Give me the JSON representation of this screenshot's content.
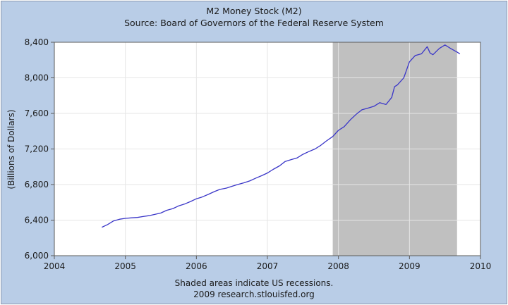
{
  "chart_data": {
    "type": "line",
    "title": "M2 Money Stock (M2)",
    "subtitle": "Source: Board of Governors of the Federal Reserve System",
    "xlabel": "",
    "ylabel": "(Billions of Dollars)",
    "xlim": [
      2004,
      2010
    ],
    "ylim": [
      6000,
      8400
    ],
    "x_ticks": [
      "2004",
      "2005",
      "2006",
      "2007",
      "2008",
      "2009",
      "2010"
    ],
    "y_ticks": [
      "6,000",
      "6,400",
      "6,800",
      "7,200",
      "7,600",
      "8,000",
      "8,400"
    ],
    "grid": true,
    "legend": "none",
    "recessions": [
      {
        "start": 2007.92,
        "end": 2009.67
      }
    ],
    "series": [
      {
        "color": "#3a36c8",
        "points": [
          [
            2004.67,
            6320
          ],
          [
            2004.75,
            6350
          ],
          [
            2004.83,
            6390
          ],
          [
            2004.92,
            6410
          ],
          [
            2005.0,
            6420
          ],
          [
            2005.08,
            6425
          ],
          [
            2005.17,
            6430
          ],
          [
            2005.25,
            6440
          ],
          [
            2005.33,
            6450
          ],
          [
            2005.42,
            6465
          ],
          [
            2005.5,
            6480
          ],
          [
            2005.58,
            6510
          ],
          [
            2005.67,
            6530
          ],
          [
            2005.75,
            6560
          ],
          [
            2005.83,
            6580
          ],
          [
            2005.92,
            6610
          ],
          [
            2006.0,
            6640
          ],
          [
            2006.08,
            6660
          ],
          [
            2006.17,
            6690
          ],
          [
            2006.25,
            6720
          ],
          [
            2006.33,
            6745
          ],
          [
            2006.42,
            6760
          ],
          [
            2006.5,
            6780
          ],
          [
            2006.58,
            6800
          ],
          [
            2006.67,
            6820
          ],
          [
            2006.75,
            6840
          ],
          [
            2006.83,
            6870
          ],
          [
            2006.92,
            6900
          ],
          [
            2007.0,
            6930
          ],
          [
            2007.08,
            6970
          ],
          [
            2007.17,
            7010
          ],
          [
            2007.25,
            7060
          ],
          [
            2007.33,
            7080
          ],
          [
            2007.42,
            7100
          ],
          [
            2007.5,
            7140
          ],
          [
            2007.58,
            7170
          ],
          [
            2007.67,
            7200
          ],
          [
            2007.75,
            7240
          ],
          [
            2007.83,
            7290
          ],
          [
            2007.92,
            7340
          ],
          [
            2008.0,
            7410
          ],
          [
            2008.08,
            7450
          ],
          [
            2008.17,
            7530
          ],
          [
            2008.25,
            7590
          ],
          [
            2008.33,
            7640
          ],
          [
            2008.42,
            7660
          ],
          [
            2008.5,
            7680
          ],
          [
            2008.58,
            7720
          ],
          [
            2008.67,
            7700
          ],
          [
            2008.75,
            7780
          ],
          [
            2008.79,
            7900
          ],
          [
            2008.83,
            7920
          ],
          [
            2008.92,
            8000
          ],
          [
            2009.0,
            8180
          ],
          [
            2009.08,
            8250
          ],
          [
            2009.17,
            8270
          ],
          [
            2009.25,
            8350
          ],
          [
            2009.29,
            8280
          ],
          [
            2009.33,
            8260
          ],
          [
            2009.42,
            8330
          ],
          [
            2009.5,
            8370
          ],
          [
            2009.58,
            8330
          ],
          [
            2009.67,
            8290
          ],
          [
            2009.71,
            8270
          ]
        ]
      }
    ]
  },
  "footer": {
    "line1": "Shaded areas indicate US recessions.",
    "line2": "2009 research.stlouisfed.org"
  }
}
